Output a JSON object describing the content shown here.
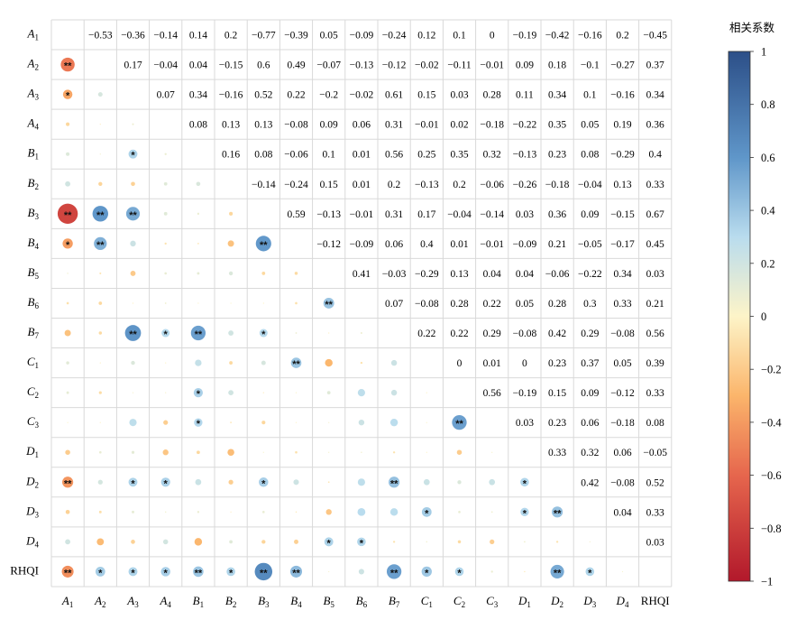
{
  "chart_data": {
    "type": "heatmap",
    "variables": [
      {
        "id": "A1",
        "base": "A",
        "sub": "1",
        "italic": true
      },
      {
        "id": "A2",
        "base": "A",
        "sub": "2",
        "italic": true
      },
      {
        "id": "A3",
        "base": "A",
        "sub": "3",
        "italic": true
      },
      {
        "id": "A4",
        "base": "A",
        "sub": "4",
        "italic": true
      },
      {
        "id": "B1",
        "base": "B",
        "sub": "1",
        "italic": true
      },
      {
        "id": "B2",
        "base": "B",
        "sub": "2",
        "italic": true
      },
      {
        "id": "B3",
        "base": "B",
        "sub": "3",
        "italic": true
      },
      {
        "id": "B4",
        "base": "B",
        "sub": "4",
        "italic": true
      },
      {
        "id": "B5",
        "base": "B",
        "sub": "5",
        "italic": true
      },
      {
        "id": "B6",
        "base": "B",
        "sub": "6",
        "italic": true
      },
      {
        "id": "B7",
        "base": "B",
        "sub": "7",
        "italic": true
      },
      {
        "id": "C1",
        "base": "C",
        "sub": "1",
        "italic": true
      },
      {
        "id": "C2",
        "base": "C",
        "sub": "2",
        "italic": true
      },
      {
        "id": "C3",
        "base": "C",
        "sub": "3",
        "italic": true
      },
      {
        "id": "D1",
        "base": "D",
        "sub": "1",
        "italic": true
      },
      {
        "id": "D2",
        "base": "D",
        "sub": "2",
        "italic": true
      },
      {
        "id": "D3",
        "base": "D",
        "sub": "3",
        "italic": true
      },
      {
        "id": "D4",
        "base": "D",
        "sub": "4",
        "italic": true
      },
      {
        "id": "RHQI",
        "base": "RHQI",
        "sub": "",
        "italic": false
      }
    ],
    "upper_labels": [
      [
        "",
        "−0.53",
        "−0.36",
        "−0.14",
        "0.14",
        "0.2",
        "−0.77",
        "−0.39",
        "0.05",
        "−0.09",
        "−0.24",
        "0.12",
        "0.1",
        "0",
        "−0.19",
        "−0.42",
        "−0.16",
        "0.2",
        "−0.45"
      ],
      [
        "",
        "",
        "0.17",
        "−0.04",
        "0.04",
        "−0.15",
        "0.6",
        "0.49",
        "−0.07",
        "−0.13",
        "−0.12",
        "−0.02",
        "−0.11",
        "−0.01",
        "0.09",
        "0.18",
        "−0.1",
        "−0.27",
        "0.37"
      ],
      [
        "",
        "",
        "",
        "0.07",
        "0.34",
        "−0.16",
        "0.52",
        "0.22",
        "−0.2",
        "−0.02",
        "0.61",
        "0.15",
        "0.03",
        "0.28",
        "0.11",
        "0.34",
        "0.1",
        "−0.16",
        "0.34"
      ],
      [
        "",
        "",
        "",
        "",
        "0.08",
        "0.13",
        "0.13",
        "−0.08",
        "0.09",
        "0.06",
        "0.31",
        "−0.01",
        "0.02",
        "−0.18",
        "−0.22",
        "0.35",
        "0.05",
        "0.19",
        "0.36"
      ],
      [
        "",
        "",
        "",
        "",
        "",
        "0.16",
        "0.08",
        "−0.06",
        "0.1",
        "0.01",
        "0.56",
        "0.25",
        "0.35",
        "0.32",
        "−0.13",
        "0.23",
        "0.08",
        "−0.29",
        "0.4"
      ],
      [
        "",
        "",
        "",
        "",
        "",
        "",
        "−0.14",
        "−0.24",
        "0.15",
        "0.01",
        "0.2",
        "−0.13",
        "0.2",
        "−0.06",
        "−0.26",
        "−0.18",
        "−0.04",
        "0.13",
        "0.33"
      ],
      [
        "",
        "",
        "",
        "",
        "",
        "",
        "",
        "0.59",
        "−0.13",
        "−0.01",
        "0.31",
        "0.17",
        "−0.04",
        "−0.14",
        "0.03",
        "0.36",
        "0.09",
        "−0.15",
        "0.67"
      ],
      [
        "",
        "",
        "",
        "",
        "",
        "",
        "",
        "",
        "−0.12",
        "−0.09",
        "0.06",
        "0.4",
        "0.01",
        "−0.01",
        "−0.09",
        "0.21",
        "−0.05",
        "−0.17",
        "0.45"
      ],
      [
        "",
        "",
        "",
        "",
        "",
        "",
        "",
        "",
        "",
        "0.41",
        "−0.03",
        "−0.29",
        "0.13",
        "0.04",
        "0.04",
        "−0.06",
        "−0.22",
        "0.34",
        "0.03"
      ],
      [
        "",
        "",
        "",
        "",
        "",
        "",
        "",
        "",
        "",
        "",
        "0.07",
        "−0.08",
        "0.28",
        "0.22",
        "0.05",
        "0.28",
        "0.3",
        "0.33",
        "0.21"
      ],
      [
        "",
        "",
        "",
        "",
        "",
        "",
        "",
        "",
        "",
        "",
        "",
        "0.22",
        "0.22",
        "0.29",
        "−0.08",
        "0.42",
        "0.29",
        "−0.08",
        "0.56"
      ],
      [
        "",
        "",
        "",
        "",
        "",
        "",
        "",
        "",
        "",
        "",
        "",
        "",
        "0",
        "0.01",
        "0",
        "0.23",
        "0.37",
        "0.05",
        "0.39"
      ],
      [
        "",
        "",
        "",
        "",
        "",
        "",
        "",
        "",
        "",
        "",
        "",
        "",
        "",
        "0.56",
        "−0.19",
        "0.15",
        "0.09",
        "−0.12",
        "0.33"
      ],
      [
        "",
        "",
        "",
        "",
        "",
        "",
        "",
        "",
        "",
        "",
        "",
        "",
        "",
        "",
        "0.03",
        "0.23",
        "0.06",
        "−0.18",
        "0.08"
      ],
      [
        "",
        "",
        "",
        "",
        "",
        "",
        "",
        "",
        "",
        "",
        "",
        "",
        "",
        "",
        "",
        "0.33",
        "0.32",
        "0.06",
        "−0.05"
      ],
      [
        "",
        "",
        "",
        "",
        "",
        "",
        "",
        "",
        "",
        "",
        "",
        "",
        "",
        "",
        "",
        "",
        "0.42",
        "−0.08",
        "0.52"
      ],
      [
        "",
        "",
        "",
        "",
        "",
        "",
        "",
        "",
        "",
        "",
        "",
        "",
        "",
        "",
        "",
        "",
        "",
        "0.04",
        "0.33"
      ],
      [
        "",
        "",
        "",
        "",
        "",
        "",
        "",
        "",
        "",
        "",
        "",
        "",
        "",
        "",
        "",
        "",
        "",
        "",
        "0.03"
      ],
      [
        "",
        "",
        "",
        "",
        "",
        "",
        "",
        "",
        "",
        "",
        "",
        "",
        "",
        "",
        "",
        "",
        "",
        "",
        ""
      ]
    ],
    "significance": [
      [
        "",
        "",
        "",
        "",
        "",
        "",
        "",
        "",
        "",
        "",
        "",
        "",
        "",
        "",
        "",
        "",
        "",
        "",
        ""
      ],
      [
        "**",
        "",
        "",
        "",
        "",
        "",
        "",
        "",
        "",
        "",
        "",
        "",
        "",
        "",
        "",
        "",
        "",
        "",
        ""
      ],
      [
        "*",
        "",
        "",
        "",
        "",
        "",
        "",
        "",
        "",
        "",
        "",
        "",
        "",
        "",
        "",
        "",
        "",
        "",
        ""
      ],
      [
        "",
        "",
        "",
        "",
        "",
        "",
        "",
        "",
        "",
        "",
        "",
        "",
        "",
        "",
        "",
        "",
        "",
        "",
        ""
      ],
      [
        "",
        "",
        "*",
        "",
        "",
        "",
        "",
        "",
        "",
        "",
        "",
        "",
        "",
        "",
        "",
        "",
        "",
        "",
        ""
      ],
      [
        "",
        "",
        "",
        "",
        "",
        "",
        "",
        "",
        "",
        "",
        "",
        "",
        "",
        "",
        "",
        "",
        "",
        "",
        ""
      ],
      [
        "**",
        "**",
        "**",
        "",
        "",
        "",
        "",
        "",
        "",
        "",
        "",
        "",
        "",
        "",
        "",
        "",
        "",
        "",
        ""
      ],
      [
        "*",
        "**",
        "",
        "",
        "",
        "",
        "**",
        "",
        "",
        "",
        "",
        "",
        "",
        "",
        "",
        "",
        "",
        "",
        ""
      ],
      [
        "",
        "",
        "",
        "",
        "",
        "",
        "",
        "",
        "",
        "",
        "",
        "",
        "",
        "",
        "",
        "",
        "",
        "",
        ""
      ],
      [
        "",
        "",
        "",
        "",
        "",
        "",
        "",
        "",
        "**",
        "",
        "",
        "",
        "",
        "",
        "",
        "",
        "",
        "",
        ""
      ],
      [
        "",
        "",
        "**",
        "*",
        "**",
        "",
        "*",
        "",
        "",
        "",
        "",
        "",
        "",
        "",
        "",
        "",
        "",
        "",
        ""
      ],
      [
        "",
        "",
        "",
        "",
        "",
        "",
        "",
        "**",
        "",
        "",
        "",
        "",
        "",
        "",
        "",
        "",
        "",
        "",
        ""
      ],
      [
        "",
        "",
        "",
        "",
        "*",
        "",
        "",
        "",
        "",
        "",
        "",
        "",
        "",
        "",
        "",
        "",
        "",
        "",
        ""
      ],
      [
        "",
        "",
        "",
        "",
        "*",
        "",
        "",
        "",
        "",
        "",
        "",
        "",
        "**",
        "",
        "",
        "",
        "",
        "",
        ""
      ],
      [
        "",
        "",
        "",
        "",
        "",
        "",
        "",
        "",
        "",
        "",
        "",
        "",
        "",
        "",
        "",
        "",
        "",
        "",
        ""
      ],
      [
        "**",
        "",
        "*",
        "*",
        "",
        "",
        "*",
        "",
        "",
        "",
        "**",
        "",
        "",
        "",
        "*",
        "",
        "",
        "",
        ""
      ],
      [
        "",
        "",
        "",
        "",
        "",
        "",
        "",
        "",
        "",
        "",
        "",
        "*",
        "",
        "",
        "*",
        "**",
        "",
        "",
        ""
      ],
      [
        "",
        "",
        "",
        "",
        "",
        "",
        "",
        "",
        "*",
        "*",
        "",
        "",
        "",
        "",
        "",
        "",
        "",
        "",
        ""
      ],
      [
        "**",
        "*",
        "*",
        "*",
        "**",
        "*",
        "**",
        "**",
        "",
        "",
        "**",
        "*",
        "*",
        "",
        "",
        "**",
        "*",
        "",
        ""
      ]
    ],
    "colorbar": {
      "title": "相关系数",
      "ticks": [
        "1",
        "0.8",
        "0.6",
        "0.4",
        "0.2",
        "0",
        "−0.2",
        "−0.4",
        "−0.6",
        "−0.8",
        "−1"
      ],
      "range": [
        -1,
        1
      ],
      "stops": [
        {
          "v": -1.0,
          "color": "#b2182b"
        },
        {
          "v": -0.6,
          "color": "#e6664d"
        },
        {
          "v": -0.3,
          "color": "#fbb56b"
        },
        {
          "v": 0.0,
          "color": "#fdf4c8"
        },
        {
          "v": 0.3,
          "color": "#b9dcee"
        },
        {
          "v": 0.6,
          "color": "#5f96c9"
        },
        {
          "v": 1.0,
          "color": "#2c4f88"
        }
      ]
    },
    "grid_color": "#d9d9d9"
  }
}
